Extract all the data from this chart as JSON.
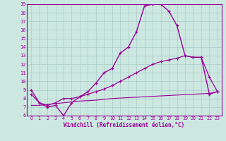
{
  "xlabel": "Windchill (Refroidissement éolien,°C)",
  "bg_color": "#cce8e0",
  "line_color": "#990099",
  "xmin": 0,
  "xmax": 23,
  "ymin": 6,
  "ymax": 19,
  "line1_x": [
    0,
    1,
    2,
    3,
    4,
    5,
    6,
    7,
    8,
    9,
    10,
    11,
    12,
    13,
    14,
    15,
    16,
    17,
    18,
    19,
    20,
    21,
    22,
    23
  ],
  "line1_y": [
    9.0,
    7.5,
    7.0,
    7.2,
    6.0,
    7.5,
    8.2,
    8.8,
    9.8,
    11.0,
    11.5,
    13.3,
    14.0,
    15.8,
    18.8,
    19.0,
    19.0,
    18.2,
    16.5,
    13.0,
    12.8,
    12.8,
    8.5,
    8.8
  ],
  "line2_x": [
    0,
    1,
    2,
    3,
    4,
    5,
    6,
    7,
    8,
    9,
    10,
    11,
    12,
    13,
    14,
    15,
    16,
    17,
    18,
    19,
    20,
    21,
    22,
    23
  ],
  "line2_y": [
    8.5,
    7.5,
    7.2,
    7.5,
    8.0,
    8.0,
    8.2,
    8.5,
    8.8,
    9.1,
    9.5,
    10.0,
    10.5,
    11.0,
    11.5,
    12.0,
    12.3,
    12.5,
    12.7,
    13.0,
    12.8,
    12.8,
    10.5,
    8.8
  ],
  "line3_x": [
    0,
    1,
    2,
    3,
    4,
    5,
    6,
    7,
    8,
    9,
    10,
    11,
    12,
    13,
    14,
    15,
    16,
    17,
    18,
    19,
    20,
    21,
    22,
    23
  ],
  "line3_y": [
    7.2,
    7.2,
    7.3,
    7.4,
    7.5,
    7.6,
    7.7,
    7.75,
    7.8,
    7.9,
    8.0,
    8.05,
    8.1,
    8.15,
    8.2,
    8.25,
    8.3,
    8.35,
    8.4,
    8.45,
    8.5,
    8.55,
    8.6,
    8.8
  ],
  "xticks": [
    0,
    1,
    2,
    3,
    4,
    5,
    6,
    7,
    8,
    9,
    10,
    11,
    12,
    13,
    14,
    15,
    16,
    17,
    18,
    19,
    20,
    21,
    22,
    23
  ],
  "yticks": [
    6,
    7,
    8,
    9,
    10,
    11,
    12,
    13,
    14,
    15,
    16,
    17,
    18,
    19
  ]
}
